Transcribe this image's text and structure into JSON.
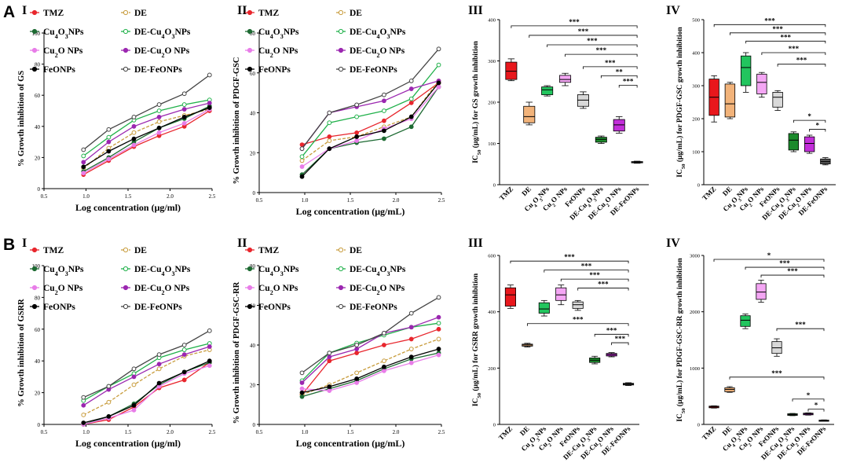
{
  "figure": {
    "row_a_letter": "A",
    "row_b_letter": "B"
  },
  "legend_entries": [
    {
      "text": "TMZ",
      "color": "#e8262d",
      "marker": "filled",
      "dash": false
    },
    {
      "text": "DE",
      "color": "#c89c3c",
      "marker": "open",
      "dash": true
    },
    {
      "text": "Cu4O3NPs",
      "color": "#1d6a32",
      "marker": "filled",
      "dash": false
    },
    {
      "text": "DE-Cu4O3NPs",
      "color": "#21b14b",
      "marker": "open",
      "dash": false
    },
    {
      "text": "Cu2O NPs",
      "color": "#e87de8",
      "marker": "filled",
      "dash": false
    },
    {
      "text": "DE-Cu2O NPs",
      "color": "#9b27b0",
      "marker": "filled",
      "dash": false
    },
    {
      "text": "FeONPs",
      "color": "#000000",
      "marker": "filled",
      "dash": false
    },
    {
      "text": "DE-FeONPs",
      "color": "#444444",
      "marker": "open",
      "dash": false
    }
  ],
  "box_categories": [
    "TMZ",
    "DE",
    "Cu4O3NPs",
    "Cu2O NPs",
    "FeONPs",
    "DE-Cu4O3NPs",
    "DE-Cu2O NPs",
    "DE-FeONPs"
  ],
  "box_colors": [
    "#e8171c",
    "#f2b37a",
    "#22c55e",
    "#f4a6f4",
    "#d9d9d9",
    "#1b8a2b",
    "#c22ed9",
    "#555555"
  ],
  "chart_data": [
    {
      "id": "A-I",
      "roman": "I",
      "type": "line",
      "title": "",
      "xlabel": "Log concentration (μg/ml)",
      "ylabel": "% Growth inhibition of GS",
      "xlim": [
        0.5,
        2.5
      ],
      "ylim": [
        0,
        100
      ],
      "xticks": [
        "0.5",
        "1.0",
        "1.5",
        "2.0",
        "2.5"
      ],
      "yticks": [
        "0",
        "20",
        "40",
        "60",
        "80",
        "100"
      ],
      "x": [
        0.97,
        1.27,
        1.57,
        1.87,
        2.17,
        2.47
      ],
      "series": [
        {
          "name": "TMZ",
          "values": [
            9,
            18,
            27,
            34,
            40,
            50
          ]
        },
        {
          "name": "DE",
          "values": [
            13,
            26,
            36,
            43,
            47,
            51
          ]
        },
        {
          "name": "Cu4O3NPs",
          "values": [
            11,
            20,
            30,
            39,
            45,
            53
          ]
        },
        {
          "name": "DE-Cu4O3NPs",
          "values": [
            21,
            33,
            44,
            50,
            54,
            57
          ]
        },
        {
          "name": "Cu2O NPs",
          "values": [
            10,
            19,
            28,
            36,
            42,
            51
          ]
        },
        {
          "name": "DE-Cu2O NPs",
          "values": [
            17,
            30,
            40,
            46,
            51,
            55
          ]
        },
        {
          "name": "FeONPs",
          "values": [
            14,
            24,
            32,
            39,
            46,
            52
          ]
        },
        {
          "name": "DE-FeONPs",
          "values": [
            25,
            38,
            46,
            54,
            61,
            73
          ]
        }
      ]
    },
    {
      "id": "A-II",
      "roman": "II",
      "type": "line",
      "title": "",
      "xlabel": "Log concentration (μg/mL)",
      "ylabel": "% Growth inhibition of PDGF-GSC",
      "xlim": [
        0.5,
        2.5
      ],
      "ylim": [
        0,
        80
      ],
      "xticks": [
        "0.5",
        "1.0",
        "1.5",
        "2.0",
        "2.5"
      ],
      "yticks": [
        "0",
        "20",
        "40",
        "60",
        "80"
      ],
      "x": [
        0.97,
        1.27,
        1.57,
        1.87,
        2.17,
        2.47
      ],
      "series": [
        {
          "name": "TMZ",
          "values": [
            24,
            28,
            30,
            36,
            45,
            55
          ]
        },
        {
          "name": "DE",
          "values": [
            16,
            26,
            28,
            33,
            38,
            56
          ]
        },
        {
          "name": "Cu4O3NPs",
          "values": [
            9,
            22,
            25,
            27,
            33,
            53
          ]
        },
        {
          "name": "DE-Cu4O3NPs",
          "values": [
            18,
            35,
            38,
            41,
            47,
            64
          ]
        },
        {
          "name": "Cu2O NPs",
          "values": [
            13,
            22,
            26,
            32,
            37,
            53
          ]
        },
        {
          "name": "DE-Cu2O NPs",
          "values": [
            22,
            40,
            43,
            46,
            52,
            56
          ]
        },
        {
          "name": "FeONPs",
          "values": [
            8,
            22,
            28,
            31,
            38,
            55
          ]
        },
        {
          "name": "DE-FeONPs",
          "values": [
            22,
            40,
            44,
            49,
            56,
            72
          ]
        }
      ]
    },
    {
      "id": "A-III",
      "roman": "III",
      "type": "box",
      "ylabel": "IC50 (μg/mL) for GS growth inhibition",
      "ylim": [
        0,
        400
      ],
      "yticks": [
        "0",
        "100",
        "200",
        "300",
        "400"
      ],
      "boxes": [
        {
          "min": 252,
          "q1": 255,
          "median": 275,
          "q3": 297,
          "max": 305
        },
        {
          "min": 145,
          "q1": 150,
          "median": 165,
          "q3": 190,
          "max": 200
        },
        {
          "min": 215,
          "q1": 218,
          "median": 230,
          "q3": 237,
          "max": 240
        },
        {
          "min": 240,
          "q1": 248,
          "median": 255,
          "q3": 265,
          "max": 270
        },
        {
          "min": 185,
          "q1": 190,
          "median": 205,
          "q3": 218,
          "max": 225
        },
        {
          "min": 100,
          "q1": 103,
          "median": 110,
          "q3": 115,
          "max": 118
        },
        {
          "min": 125,
          "q1": 130,
          "median": 145,
          "q3": 158,
          "max": 165
        },
        {
          "min": 52,
          "q1": 53,
          "median": 55,
          "q3": 56,
          "max": 57
        }
      ],
      "sig": [
        {
          "from": 0,
          "to": 7,
          "label": "***",
          "y": 385
        },
        {
          "from": 1,
          "to": 7,
          "label": "***",
          "y": 362
        },
        {
          "from": 2,
          "to": 7,
          "label": "***",
          "y": 339
        },
        {
          "from": 3,
          "to": 7,
          "label": "***",
          "y": 316
        },
        {
          "from": 4,
          "to": 7,
          "label": "***",
          "y": 286
        },
        {
          "from": 5,
          "to": 7,
          "label": "**",
          "y": 264
        },
        {
          "from": 6,
          "to": 7,
          "label": "***",
          "y": 241
        }
      ]
    },
    {
      "id": "A-IV",
      "roman": "IV",
      "type": "box",
      "ylabel": "IC50 (μg/mL) for PDGF-GSC growth inhibition",
      "ylim": [
        0,
        500
      ],
      "yticks": [
        "0",
        "100",
        "200",
        "300",
        "400",
        "500"
      ],
      "boxes": [
        {
          "min": 190,
          "q1": 210,
          "median": 265,
          "q3": 320,
          "max": 330
        },
        {
          "min": 200,
          "q1": 205,
          "median": 245,
          "q3": 305,
          "max": 310
        },
        {
          "min": 280,
          "q1": 300,
          "median": 355,
          "q3": 390,
          "max": 400
        },
        {
          "min": 265,
          "q1": 275,
          "median": 310,
          "q3": 335,
          "max": 340
        },
        {
          "min": 225,
          "q1": 235,
          "median": 265,
          "q3": 280,
          "max": 285
        },
        {
          "min": 100,
          "q1": 105,
          "median": 135,
          "q3": 155,
          "max": 160
        },
        {
          "min": 95,
          "q1": 100,
          "median": 125,
          "q3": 145,
          "max": 150
        },
        {
          "min": 60,
          "q1": 63,
          "median": 70,
          "q3": 78,
          "max": 82
        }
      ],
      "sig": [
        {
          "from": 0,
          "to": 7,
          "label": "***",
          "y": 485
        },
        {
          "from": 1,
          "to": 7,
          "label": "***",
          "y": 460
        },
        {
          "from": 2,
          "to": 7,
          "label": "***",
          "y": 435
        },
        {
          "from": 3,
          "to": 7,
          "label": "***",
          "y": 400
        },
        {
          "from": 4,
          "to": 7,
          "label": "***",
          "y": 365
        },
        {
          "from": 5,
          "to": 7,
          "label": "*",
          "y": 195
        },
        {
          "from": 6,
          "to": 7,
          "label": "*",
          "y": 168
        }
      ]
    },
    {
      "id": "B-I",
      "roman": "I",
      "type": "line",
      "title": "",
      "xlabel": "Log concentration (μg/ml)",
      "ylabel": "% Growth inhibition of GSRR",
      "xlim": [
        0.5,
        2.5
      ],
      "ylim": [
        0,
        100
      ],
      "xticks": [
        "0.5",
        "1.0",
        "1.5",
        "2.0",
        "2.5"
      ],
      "yticks": [
        "0",
        "20",
        "40",
        "60",
        "80",
        "100"
      ],
      "x": [
        0.97,
        1.27,
        1.57,
        1.87,
        2.17,
        2.47
      ],
      "series": [
        {
          "name": "TMZ",
          "values": [
            0,
            3,
            11,
            23,
            28,
            39
          ]
        },
        {
          "name": "DE",
          "values": [
            6,
            14,
            25,
            35,
            43,
            47
          ]
        },
        {
          "name": "Cu4O3NPs",
          "values": [
            0,
            5,
            13,
            25,
            33,
            39
          ]
        },
        {
          "name": "DE-Cu4O3NPs",
          "values": [
            15,
            24,
            32,
            42,
            47,
            51
          ]
        },
        {
          "name": "Cu2O NPs",
          "values": [
            0,
            4,
            9,
            24,
            32,
            37
          ]
        },
        {
          "name": "DE-Cu2O NPs",
          "values": [
            12,
            22,
            30,
            38,
            44,
            49
          ]
        },
        {
          "name": "FeONPs",
          "values": [
            1,
            5,
            12,
            26,
            33,
            40
          ]
        },
        {
          "name": "DE-FeONPs",
          "values": [
            17,
            24,
            35,
            44,
            50,
            59
          ]
        }
      ]
    },
    {
      "id": "B-II",
      "roman": "II",
      "type": "line",
      "title": "",
      "xlabel": "Log concentration (μg/mL)",
      "ylabel": "% Growth inhibition of PDGF-GSC-RR",
      "xlim": [
        0.5,
        2.5
      ],
      "ylim": [
        0,
        80
      ],
      "xticks": [
        "0.5",
        "1.0",
        "1.5",
        "2.0",
        "2.5"
      ],
      "yticks": [
        "0",
        "20",
        "40",
        "60",
        "80"
      ],
      "x": [
        0.97,
        1.27,
        1.57,
        1.87,
        2.17,
        2.47
      ],
      "series": [
        {
          "name": "TMZ",
          "values": [
            15,
            32,
            36,
            40,
            43,
            48
          ]
        },
        {
          "name": "DE",
          "values": [
            15,
            20,
            26,
            32,
            38,
            43
          ]
        },
        {
          "name": "Cu4O3NPs",
          "values": [
            14,
            18,
            22,
            28,
            33,
            36
          ]
        },
        {
          "name": "DE-Cu4O3NPs",
          "values": [
            22,
            36,
            41,
            45,
            49,
            51
          ]
        },
        {
          "name": "Cu2O NPs",
          "values": [
            18,
            17,
            21,
            27,
            31,
            35
          ]
        },
        {
          "name": "DE-Cu2O NPs",
          "values": [
            21,
            34,
            38,
            46,
            49,
            54
          ]
        },
        {
          "name": "FeONPs",
          "values": [
            16,
            19,
            23,
            29,
            34,
            38
          ]
        },
        {
          "name": "DE-FeONPs",
          "values": [
            26,
            36,
            40,
            46,
            56,
            64
          ]
        }
      ]
    },
    {
      "id": "B-III",
      "roman": "III",
      "type": "box",
      "ylabel": "IC50 (μg/mL) for GSRR growth inhibition",
      "ylim": [
        0,
        600
      ],
      "yticks": [
        "0",
        "200",
        "400",
        "600"
      ],
      "boxes": [
        {
          "min": 412,
          "q1": 420,
          "median": 460,
          "q3": 485,
          "max": 495
        },
        {
          "min": 275,
          "q1": 278,
          "median": 282,
          "q3": 285,
          "max": 288
        },
        {
          "min": 385,
          "q1": 395,
          "median": 410,
          "q3": 432,
          "max": 440
        },
        {
          "min": 425,
          "q1": 440,
          "median": 460,
          "q3": 485,
          "max": 495
        },
        {
          "min": 405,
          "q1": 412,
          "median": 425,
          "q3": 435,
          "max": 440
        },
        {
          "min": 215,
          "q1": 220,
          "median": 228,
          "q3": 236,
          "max": 242
        },
        {
          "min": 240,
          "q1": 243,
          "median": 248,
          "q3": 252,
          "max": 255
        },
        {
          "min": 138,
          "q1": 140,
          "median": 143,
          "q3": 146,
          "max": 148
        }
      ],
      "sig": [
        {
          "from": 0,
          "to": 7,
          "label": "***",
          "y": 580
        },
        {
          "from": 2,
          "to": 7,
          "label": "***",
          "y": 548
        },
        {
          "from": 3,
          "to": 7,
          "label": "***",
          "y": 516
        },
        {
          "from": 4,
          "to": 7,
          "label": "***",
          "y": 484
        },
        {
          "from": 1,
          "to": 7,
          "label": "***",
          "y": 358
        },
        {
          "from": 5,
          "to": 7,
          "label": "***",
          "y": 320
        },
        {
          "from": 6,
          "to": 7,
          "label": "***",
          "y": 290
        }
      ]
    },
    {
      "id": "B-IV",
      "roman": "IV",
      "type": "box",
      "ylabel": "IC50 (μg/mL) for PDGF-GSC-RR growth inhibition",
      "ylim": [
        0,
        3000
      ],
      "yticks": [
        "0",
        "1000",
        "2000",
        "3000"
      ],
      "boxes": [
        {
          "min": 290,
          "q1": 295,
          "median": 310,
          "q3": 325,
          "max": 330
        },
        {
          "min": 570,
          "q1": 580,
          "median": 620,
          "q3": 650,
          "max": 670
        },
        {
          "min": 1700,
          "q1": 1740,
          "median": 1850,
          "q3": 1930,
          "max": 1960
        },
        {
          "min": 2170,
          "q1": 2220,
          "median": 2350,
          "q3": 2500,
          "max": 2560
        },
        {
          "min": 1210,
          "q1": 1260,
          "median": 1360,
          "q3": 1470,
          "max": 1520
        },
        {
          "min": 155,
          "q1": 160,
          "median": 175,
          "q3": 190,
          "max": 195
        },
        {
          "min": 165,
          "q1": 170,
          "median": 185,
          "q3": 200,
          "max": 205
        },
        {
          "min": 62,
          "q1": 64,
          "median": 70,
          "q3": 76,
          "max": 80
        }
      ],
      "sig": [
        {
          "from": 0,
          "to": 7,
          "label": "*",
          "y": 2930
        },
        {
          "from": 2,
          "to": 7,
          "label": "***",
          "y": 2790
        },
        {
          "from": 3,
          "to": 7,
          "label": "***",
          "y": 2650
        },
        {
          "from": 4,
          "to": 7,
          "label": "***",
          "y": 1700
        },
        {
          "from": 1,
          "to": 7,
          "label": "***",
          "y": 840
        },
        {
          "from": 5,
          "to": 7,
          "label": "*",
          "y": 450
        },
        {
          "from": 6,
          "to": 7,
          "label": "*",
          "y": 270
        }
      ]
    }
  ]
}
